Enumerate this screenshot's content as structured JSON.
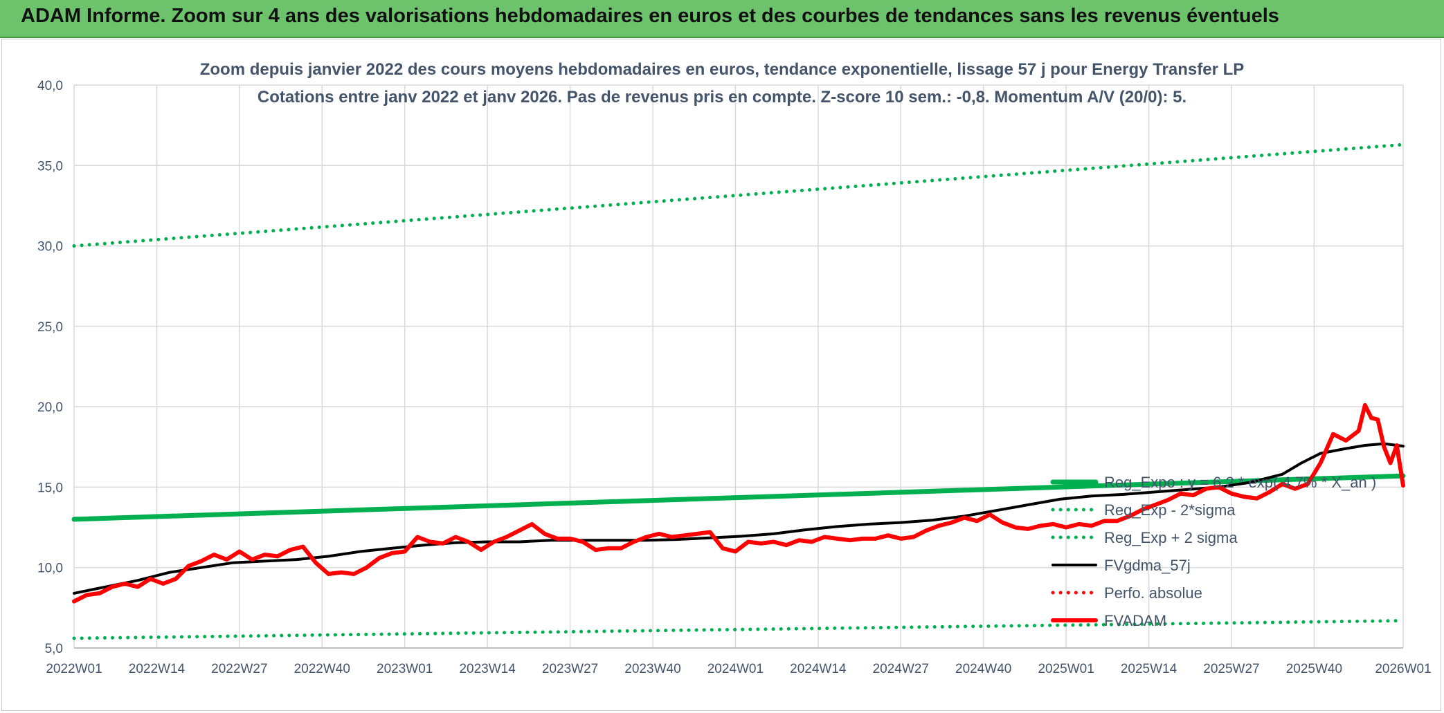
{
  "banner": {
    "title": "ADAM Informe. Zoom sur 4 ans des valorisations hebdomadaires en euros et des courbes de tendances sans les revenus éventuels"
  },
  "colors": {
    "banner_bg": "#6cc36b",
    "trend_green": "#00b050",
    "fvgdma": "#000000",
    "fvadam": "#ff0000",
    "grid": "#d9d9d9",
    "text": "#44546a"
  },
  "chart_data": {
    "type": "line",
    "title": "Zoom depuis janvier 2022 des cours moyens hebdomadaires en euros, tendance exponentielle, lissage 57 j pour Energy Transfer LP",
    "subtitle": "Cotations entre janv 2022 et janv 2026. Pas de revenus pris en compte. Z-score 10 sem.: -0,8. Momentum A/V (20/0): 5.",
    "xlabel": "",
    "ylabel": "",
    "ylim": [
      5,
      40
    ],
    "yticks": [
      "5,0",
      "10,0",
      "15,0",
      "20,0",
      "25,0",
      "30,0",
      "35,0",
      "40,0"
    ],
    "xticks": [
      "2022W01",
      "2022W14",
      "2022W27",
      "2022W40",
      "2023W01",
      "2023W14",
      "2023W27",
      "2023W40",
      "2024W01",
      "2024W14",
      "2024W27",
      "2024W40",
      "2025W01",
      "2025W14",
      "2025W27",
      "2025W40",
      "2026W01"
    ],
    "grid": true,
    "legend_position": "right-bottom",
    "series": [
      {
        "name": "Reg_Expo : y = 6,2 * exp( 4,7% * X_an )",
        "style": "solid-thick",
        "color": "#00b050",
        "points": [
          [
            0,
            13.0
          ],
          [
            209,
            15.7
          ]
        ]
      },
      {
        "name": "Reg_Exp - 2*sigma",
        "style": "dotted",
        "color": "#00b050",
        "points": [
          [
            0,
            5.6
          ],
          [
            209,
            6.7
          ]
        ]
      },
      {
        "name": "Reg_Exp + 2 sigma",
        "style": "dotted",
        "color": "#00b050",
        "points": [
          [
            0,
            30.0
          ],
          [
            209,
            36.3
          ]
        ]
      },
      {
        "name": "FVgdma_57j",
        "style": "solid",
        "color": "#000000",
        "points": [
          [
            0,
            8.4
          ],
          [
            5,
            8.8
          ],
          [
            10,
            9.2
          ],
          [
            15,
            9.7
          ],
          [
            20,
            10.0
          ],
          [
            25,
            10.3
          ],
          [
            30,
            10.4
          ],
          [
            35,
            10.5
          ],
          [
            40,
            10.7
          ],
          [
            45,
            11.0
          ],
          [
            50,
            11.2
          ],
          [
            55,
            11.4
          ],
          [
            60,
            11.55
          ],
          [
            65,
            11.6
          ],
          [
            70,
            11.6
          ],
          [
            75,
            11.7
          ],
          [
            80,
            11.7
          ],
          [
            85,
            11.7
          ],
          [
            90,
            11.7
          ],
          [
            95,
            11.75
          ],
          [
            100,
            11.85
          ],
          [
            105,
            11.95
          ],
          [
            110,
            12.1
          ],
          [
            115,
            12.35
          ],
          [
            120,
            12.55
          ],
          [
            125,
            12.7
          ],
          [
            130,
            12.8
          ],
          [
            135,
            12.95
          ],
          [
            140,
            13.2
          ],
          [
            145,
            13.55
          ],
          [
            150,
            13.9
          ],
          [
            155,
            14.25
          ],
          [
            160,
            14.45
          ],
          [
            165,
            14.55
          ],
          [
            170,
            14.7
          ],
          [
            175,
            14.85
          ],
          [
            180,
            15.0
          ],
          [
            185,
            15.3
          ],
          [
            190,
            15.8
          ],
          [
            193,
            16.5
          ],
          [
            196,
            17.1
          ],
          [
            200,
            17.4
          ],
          [
            203,
            17.6
          ],
          [
            206,
            17.7
          ],
          [
            209,
            17.55
          ]
        ]
      },
      {
        "name": "Perfo. absolue",
        "style": "dotted",
        "color": "#ff0000",
        "points": []
      },
      {
        "name": "FVADAM",
        "style": "solid-thick",
        "color": "#ff0000",
        "points": [
          [
            0,
            7.9
          ],
          [
            2,
            8.3
          ],
          [
            4,
            8.4
          ],
          [
            6,
            8.8
          ],
          [
            8,
            9.0
          ],
          [
            10,
            8.8
          ],
          [
            12,
            9.3
          ],
          [
            14,
            9.0
          ],
          [
            16,
            9.3
          ],
          [
            18,
            10.1
          ],
          [
            20,
            10.4
          ],
          [
            22,
            10.8
          ],
          [
            24,
            10.5
          ],
          [
            26,
            11.0
          ],
          [
            28,
            10.5
          ],
          [
            30,
            10.8
          ],
          [
            32,
            10.7
          ],
          [
            34,
            11.1
          ],
          [
            36,
            11.3
          ],
          [
            38,
            10.3
          ],
          [
            40,
            9.6
          ],
          [
            42,
            9.7
          ],
          [
            44,
            9.6
          ],
          [
            46,
            10.0
          ],
          [
            48,
            10.6
          ],
          [
            50,
            10.9
          ],
          [
            52,
            11.0
          ],
          [
            54,
            11.9
          ],
          [
            56,
            11.6
          ],
          [
            58,
            11.5
          ],
          [
            60,
            11.9
          ],
          [
            62,
            11.6
          ],
          [
            64,
            11.1
          ],
          [
            66,
            11.6
          ],
          [
            68,
            11.9
          ],
          [
            70,
            12.3
          ],
          [
            72,
            12.7
          ],
          [
            74,
            12.1
          ],
          [
            76,
            11.8
          ],
          [
            78,
            11.8
          ],
          [
            80,
            11.6
          ],
          [
            82,
            11.1
          ],
          [
            84,
            11.2
          ],
          [
            86,
            11.2
          ],
          [
            88,
            11.6
          ],
          [
            90,
            11.9
          ],
          [
            92,
            12.1
          ],
          [
            94,
            11.9
          ],
          [
            96,
            12.0
          ],
          [
            98,
            12.1
          ],
          [
            100,
            12.2
          ],
          [
            102,
            11.2
          ],
          [
            104,
            11.0
          ],
          [
            106,
            11.6
          ],
          [
            108,
            11.5
          ],
          [
            110,
            11.6
          ],
          [
            112,
            11.4
          ],
          [
            114,
            11.7
          ],
          [
            116,
            11.6
          ],
          [
            118,
            11.9
          ],
          [
            120,
            11.8
          ],
          [
            122,
            11.7
          ],
          [
            124,
            11.8
          ],
          [
            126,
            11.8
          ],
          [
            128,
            12.0
          ],
          [
            130,
            11.8
          ],
          [
            132,
            11.9
          ],
          [
            134,
            12.3
          ],
          [
            136,
            12.6
          ],
          [
            138,
            12.8
          ],
          [
            140,
            13.1
          ],
          [
            142,
            12.9
          ],
          [
            144,
            13.3
          ],
          [
            146,
            12.8
          ],
          [
            148,
            12.5
          ],
          [
            150,
            12.4
          ],
          [
            152,
            12.6
          ],
          [
            154,
            12.7
          ],
          [
            156,
            12.5
          ],
          [
            158,
            12.7
          ],
          [
            160,
            12.6
          ],
          [
            162,
            12.9
          ],
          [
            164,
            12.9
          ],
          [
            166,
            13.2
          ],
          [
            168,
            13.6
          ],
          [
            170,
            13.9
          ],
          [
            172,
            14.2
          ],
          [
            174,
            14.6
          ],
          [
            176,
            14.5
          ],
          [
            178,
            14.9
          ],
          [
            180,
            15.0
          ],
          [
            182,
            14.6
          ],
          [
            184,
            14.4
          ],
          [
            186,
            14.3
          ],
          [
            188,
            14.7
          ],
          [
            190,
            15.2
          ],
          [
            192,
            14.9
          ],
          [
            194,
            15.2
          ],
          [
            196,
            16.5
          ],
          [
            198,
            18.3
          ],
          [
            200,
            17.9
          ],
          [
            202,
            18.5
          ],
          [
            203,
            20.1
          ],
          [
            204,
            19.3
          ],
          [
            205,
            19.2
          ],
          [
            206,
            17.5
          ],
          [
            207,
            16.5
          ],
          [
            208,
            17.6
          ],
          [
            209,
            15.1
          ]
        ]
      }
    ]
  },
  "legend": {
    "items": [
      "Reg_Expo : y = 6,2 * exp( 4,7% * X_an )",
      "Reg_Exp - 2*sigma",
      "Reg_Exp + 2 sigma",
      "FVgdma_57j",
      "Perfo. absolue",
      "FVADAM"
    ]
  }
}
